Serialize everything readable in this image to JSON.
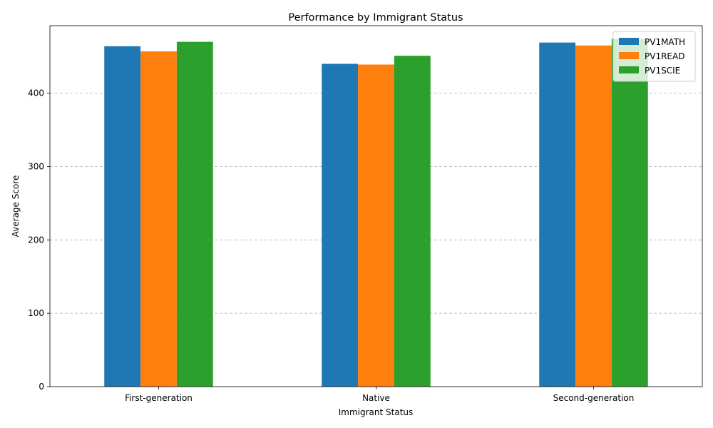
{
  "chart_data": {
    "type": "bar",
    "title": "Performance by Immigrant Status",
    "xlabel": "Immigrant Status",
    "ylabel": "Average Score",
    "categories": [
      "First-generation",
      "Native",
      "Second-generation"
    ],
    "series": [
      {
        "name": "PV1MATH",
        "color": "#1f77b4",
        "values": [
          464,
          440,
          469
        ]
      },
      {
        "name": "PV1READ",
        "color": "#ff7f0e",
        "values": [
          457,
          439,
          465
        ]
      },
      {
        "name": "PV1SCIE",
        "color": "#2ca02c",
        "values": [
          470,
          451,
          474
        ]
      }
    ],
    "ylim": [
      0,
      492
    ],
    "yticks": [
      0,
      100,
      200,
      300,
      400
    ],
    "grid": "y-dashed",
    "legend_position": "top-right"
  }
}
